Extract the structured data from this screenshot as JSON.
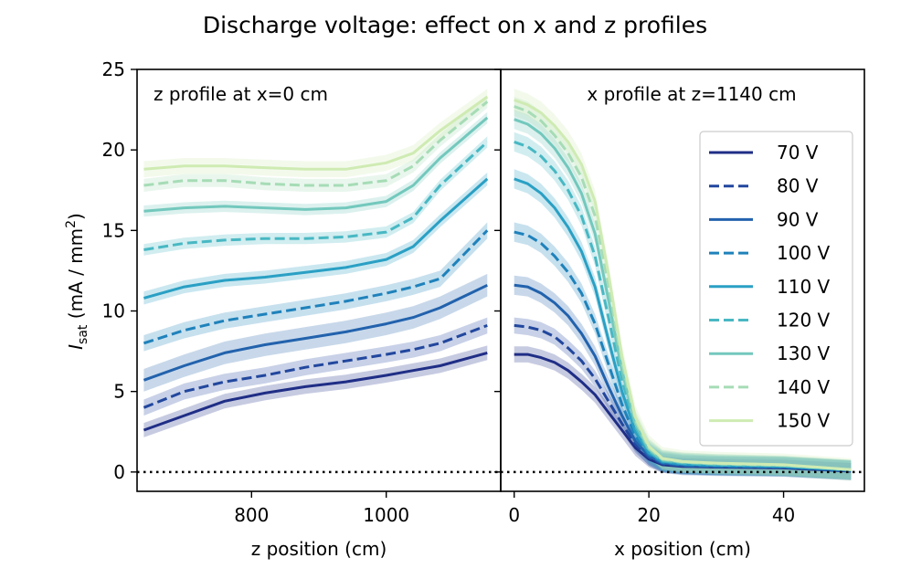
{
  "title": "Discharge voltage: effect on x and z profiles",
  "ylabel_main": "I",
  "ylabel_sub": "sat",
  "ylabel_units": " (mA / mm",
  "ylabel_sup": "2",
  "ylabel_close": ")",
  "colors": {
    "70 V": "#1f2e86",
    "80 V": "#22479e",
    "90 V": "#2262ad",
    "100 V": "#1f82bb",
    "110 V": "#2aa0c4",
    "120 V": "#48b8c3",
    "130 V": "#73c8bd",
    "140 V": "#a6dcb6",
    "150 V": "#cfebb3"
  },
  "chart_data": [
    {
      "type": "line",
      "panel": "left",
      "annotation": "z profile at x=0 cm",
      "xlabel": "z position (cm)",
      "ylabel": "I_sat (mA / mm^2)",
      "xlim": [
        630,
        1170
      ],
      "ylim": [
        -1.2,
        25
      ],
      "xticks": [
        800,
        1000
      ],
      "yticks": [
        0,
        5,
        10,
        15,
        20,
        25
      ],
      "zero_line": "dotted",
      "x": [
        640,
        700,
        760,
        820,
        880,
        940,
        1000,
        1040,
        1080,
        1150
      ],
      "series": [
        {
          "name": "70 V",
          "dash": false,
          "values": [
            2.6,
            3.5,
            4.4,
            4.9,
            5.3,
            5.6,
            6.0,
            6.3,
            6.6,
            7.4
          ],
          "band": 0.45
        },
        {
          "name": "80 V",
          "dash": true,
          "values": [
            4.0,
            5.0,
            5.6,
            6.0,
            6.5,
            6.9,
            7.3,
            7.6,
            8.0,
            9.1
          ],
          "band": 0.5
        },
        {
          "name": "90 V",
          "dash": false,
          "values": [
            5.7,
            6.6,
            7.4,
            7.9,
            8.3,
            8.7,
            9.2,
            9.6,
            10.2,
            11.6
          ],
          "band": 0.7
        },
        {
          "name": "100 V",
          "dash": true,
          "values": [
            8.0,
            8.8,
            9.4,
            9.8,
            10.2,
            10.6,
            11.1,
            11.5,
            12.0,
            15.0
          ],
          "band": 0.5
        },
        {
          "name": "110 V",
          "dash": false,
          "values": [
            10.8,
            11.5,
            11.9,
            12.1,
            12.4,
            12.7,
            13.2,
            14.0,
            15.6,
            18.2
          ],
          "band": 0.4
        },
        {
          "name": "120 V",
          "dash": true,
          "values": [
            13.8,
            14.2,
            14.4,
            14.5,
            14.5,
            14.6,
            14.9,
            15.8,
            17.8,
            20.5
          ],
          "band": 0.35
        },
        {
          "name": "130 V",
          "dash": false,
          "values": [
            16.2,
            16.4,
            16.5,
            16.4,
            16.3,
            16.4,
            16.8,
            17.8,
            19.5,
            22.0
          ],
          "band": 0.35
        },
        {
          "name": "140 V",
          "dash": true,
          "values": [
            17.8,
            18.1,
            18.1,
            17.9,
            17.8,
            17.8,
            18.1,
            19.0,
            20.6,
            23.0
          ],
          "band": 0.4
        },
        {
          "name": "150 V",
          "dash": false,
          "values": [
            18.8,
            19.0,
            19.0,
            18.9,
            18.8,
            18.8,
            19.2,
            19.8,
            21.2,
            23.3
          ],
          "band": 0.5
        }
      ]
    },
    {
      "type": "line",
      "panel": "right",
      "annotation": "x profile at z=1140 cm",
      "xlabel": "x position (cm)",
      "xlim": [
        -2,
        52
      ],
      "ylim": [
        -1.2,
        25
      ],
      "xticks": [
        0,
        20,
        40
      ],
      "zero_line": "dotted",
      "legend": "right",
      "x": [
        0,
        2,
        4,
        6,
        8,
        10,
        12,
        14,
        16,
        18,
        20,
        22,
        25,
        30,
        40,
        50
      ],
      "series": [
        {
          "name": "70 V",
          "dash": false,
          "values": [
            7.3,
            7.3,
            7.1,
            6.8,
            6.3,
            5.6,
            4.8,
            3.7,
            2.6,
            1.5,
            0.8,
            0.45,
            0.35,
            0.3,
            0.25,
            0.05
          ],
          "band": 0.5
        },
        {
          "name": "80 V",
          "dash": true,
          "values": [
            9.1,
            9.0,
            8.8,
            8.4,
            7.7,
            6.9,
            5.8,
            4.4,
            3.0,
            1.7,
            0.9,
            0.5,
            0.38,
            0.32,
            0.28,
            0.05
          ],
          "band": 0.5
        },
        {
          "name": "90 V",
          "dash": false,
          "values": [
            11.6,
            11.5,
            11.1,
            10.5,
            9.7,
            8.6,
            7.2,
            5.3,
            3.5,
            1.9,
            1.0,
            0.55,
            0.4,
            0.35,
            0.3,
            0.08
          ],
          "band": 0.6
        },
        {
          "name": "100 V",
          "dash": true,
          "values": [
            14.9,
            14.7,
            14.2,
            13.4,
            12.4,
            11.1,
            9.2,
            6.7,
            4.2,
            2.2,
            1.1,
            0.6,
            0.45,
            0.38,
            0.32,
            0.1
          ],
          "band": 0.6
        },
        {
          "name": "110 V",
          "dash": false,
          "values": [
            18.2,
            17.9,
            17.3,
            16.4,
            15.2,
            13.7,
            11.5,
            8.2,
            5.0,
            2.5,
            1.2,
            0.65,
            0.5,
            0.42,
            0.35,
            0.12
          ],
          "band": 0.6
        },
        {
          "name": "120 V",
          "dash": true,
          "values": [
            20.5,
            20.2,
            19.6,
            18.7,
            17.5,
            15.9,
            13.4,
            9.6,
            5.7,
            2.8,
            1.3,
            0.7,
            0.55,
            0.45,
            0.38,
            0.15
          ],
          "band": 0.6
        },
        {
          "name": "130 V",
          "dash": false,
          "values": [
            21.9,
            21.6,
            21.0,
            20.1,
            18.9,
            17.3,
            14.8,
            10.7,
            6.3,
            3.0,
            1.4,
            0.75,
            0.6,
            0.5,
            0.4,
            0.15
          ],
          "band": 0.6
        },
        {
          "name": "140 V",
          "dash": true,
          "values": [
            22.7,
            22.4,
            21.8,
            20.9,
            19.8,
            18.3,
            15.9,
            11.6,
            6.8,
            3.2,
            1.5,
            0.8,
            0.62,
            0.52,
            0.42,
            0.15
          ],
          "band": 0.6
        },
        {
          "name": "150 V",
          "dash": false,
          "values": [
            23.1,
            22.8,
            22.3,
            21.5,
            20.5,
            19.1,
            16.8,
            12.3,
            7.2,
            3.4,
            1.6,
            0.85,
            0.65,
            0.55,
            0.45,
            0.15
          ],
          "band": 0.7
        }
      ]
    }
  ]
}
